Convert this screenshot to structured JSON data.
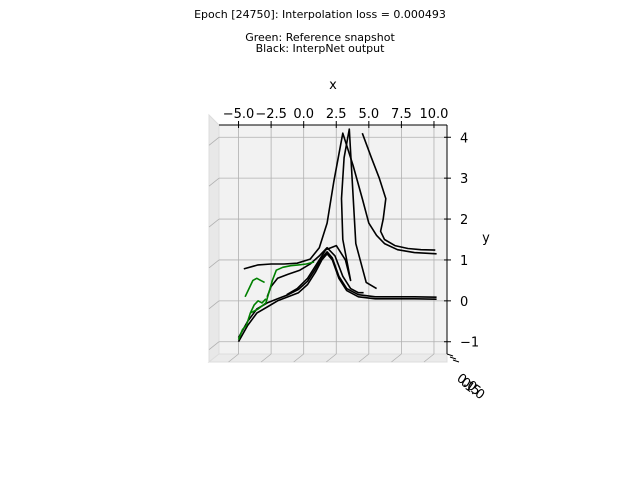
{
  "chart_data": {
    "type": "line",
    "projection": "3d",
    "title_lines": [
      "Epoch [24750]: Interpolation loss = 0.000493",
      "",
      "Green: Reference snapshot",
      "Black: InterpNet output"
    ],
    "xlabel": "x",
    "ylabel": "y",
    "zlabel": "",
    "xlim": [
      -6.5,
      11
    ],
    "ylim": [
      -1.3,
      4.3
    ],
    "x_ticks": [
      -5.0,
      -2.5,
      0.0,
      2.5,
      5.0,
      7.5,
      10.0
    ],
    "x_tick_labels": [
      "−5.0",
      "−2.5",
      "0.0",
      "2.5",
      "5.0",
      "7.5",
      "10.0"
    ],
    "y_ticks": [
      -1,
      0,
      1,
      2,
      3,
      4
    ],
    "y_tick_labels": [
      "−1",
      "0",
      "1",
      "2",
      "3",
      "4"
    ],
    "z_tick_labels": [
      "0.0",
      "0.5",
      "1.0"
    ],
    "grid": true,
    "colors": {
      "reference": "#008000",
      "interpnet": "#000000",
      "pane": "#f2f2f2",
      "grid": "#b0b0b0"
    },
    "series": [
      {
        "role": "interpnet",
        "x": [
          -4.6,
          -3.5,
          -2.5,
          -1.5,
          -0.5,
          0.5,
          1.2,
          1.8,
          2.3,
          3.0,
          3.8,
          4.5,
          5.0,
          5.6,
          6.2,
          7.2,
          8.5,
          10.2
        ],
        "y": [
          0.78,
          0.88,
          0.9,
          0.9,
          0.92,
          1.02,
          1.3,
          1.9,
          2.9,
          4.1,
          3.3,
          2.5,
          1.9,
          1.6,
          1.4,
          1.25,
          1.18,
          1.15
        ]
      },
      {
        "role": "interpnet",
        "x": [
          -2.8,
          -2.5,
          -2.0,
          -1.2,
          -0.3,
          0.5,
          1.2,
          1.8,
          2.4,
          3.0,
          3.6,
          4.2,
          4.6
        ],
        "y": [
          0.1,
          0.35,
          0.55,
          0.65,
          0.75,
          0.9,
          1.1,
          1.3,
          1.1,
          0.6,
          0.3,
          0.2,
          0.2
        ]
      },
      {
        "role": "interpnet",
        "x": [
          -1.3,
          -0.5,
          0.3,
          1.0,
          1.7,
          2.5,
          3.2,
          3.6,
          3.0,
          2.9,
          3.1,
          3.5,
          4.0,
          4.8,
          5.6
        ],
        "y": [
          0.15,
          0.3,
          0.55,
          0.9,
          1.25,
          1.35,
          1.0,
          0.5,
          1.5,
          2.5,
          3.5,
          4.2,
          1.4,
          0.45,
          0.3
        ]
      },
      {
        "role": "interpnet",
        "x": [
          4.5,
          5.2,
          5.8,
          6.3,
          6.1,
          5.9,
          6.2,
          7.0,
          8.0,
          9.0,
          10.1
        ],
        "y": [
          4.1,
          3.5,
          3.0,
          2.5,
          2.0,
          1.7,
          1.5,
          1.35,
          1.28,
          1.25,
          1.24
        ]
      },
      {
        "role": "interpnet",
        "x": [
          -5.0,
          -4.3,
          -3.6,
          -2.8,
          -2.0,
          -1.2,
          -0.4,
          0.3,
          0.9,
          1.4,
          1.8,
          2.2,
          2.7,
          3.3,
          4.2,
          5.5,
          7.0,
          8.5,
          10.2
        ],
        "y": [
          -1.0,
          -0.6,
          -0.3,
          -0.15,
          0.0,
          0.1,
          0.2,
          0.4,
          0.7,
          1.0,
          1.15,
          1.0,
          0.55,
          0.25,
          0.1,
          0.05,
          0.05,
          0.05,
          0.04
        ]
      },
      {
        "role": "interpnet",
        "x": [
          -5.0,
          -4.3,
          -3.6,
          -2.8,
          -2.0,
          -1.2,
          -0.4,
          0.3,
          0.9,
          1.4,
          1.8,
          2.2,
          2.7,
          3.3,
          4.2,
          5.5,
          7.0,
          8.5,
          10.2
        ],
        "y": [
          -0.9,
          -0.5,
          -0.2,
          -0.05,
          0.05,
          0.15,
          0.28,
          0.48,
          0.78,
          1.05,
          1.2,
          1.05,
          0.6,
          0.3,
          0.15,
          0.1,
          0.1,
          0.1,
          0.09
        ]
      },
      {
        "role": "reference",
        "x": [
          -5.0,
          -4.7,
          -4.4,
          -4.1,
          -3.8,
          -3.5,
          -3.2,
          -2.9
        ],
        "y": [
          -0.95,
          -0.7,
          -0.6,
          -0.3,
          -0.1,
          0.0,
          -0.05,
          0.05
        ]
      },
      {
        "role": "reference",
        "x": [
          -4.1,
          -3.5,
          -2.9,
          -2.4,
          -2.1,
          -1.6,
          -1.0,
          -0.4,
          0.2,
          0.8
        ],
        "y": [
          -0.3,
          -0.2,
          -0.05,
          0.5,
          0.75,
          0.82,
          0.86,
          0.88,
          0.9,
          0.95
        ]
      },
      {
        "role": "reference",
        "x": [
          -4.5,
          -4.2,
          -3.9,
          -3.6,
          -3.3,
          -3.0
        ],
        "y": [
          0.1,
          0.3,
          0.5,
          0.55,
          0.5,
          0.45
        ]
      }
    ]
  }
}
